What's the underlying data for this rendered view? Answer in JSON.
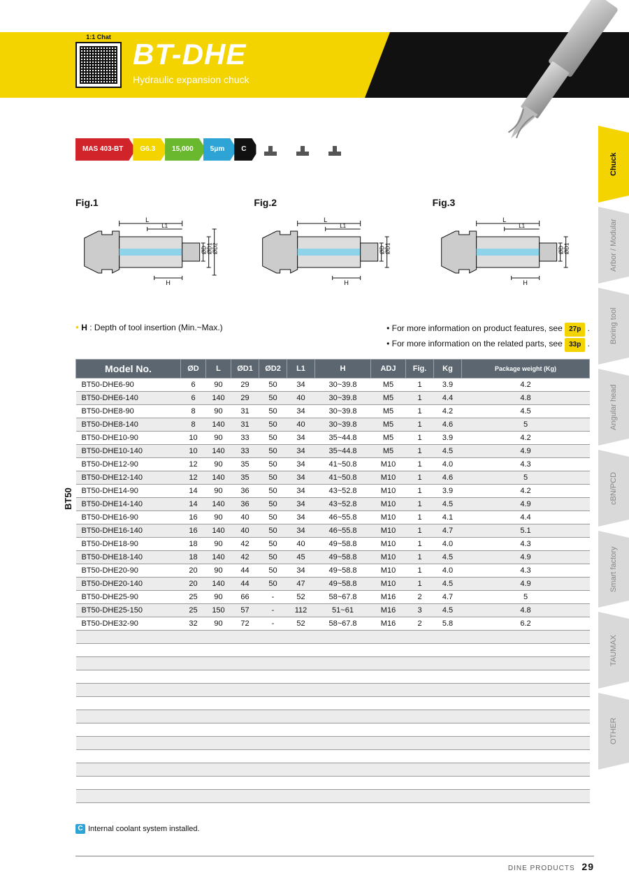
{
  "header": {
    "title": "BT-DHE",
    "subtitle": "Hydraulic expansion chuck",
    "qr_chat": "1:1 Chat"
  },
  "tags": [
    {
      "val": "MAS 403-BT",
      "label": "Shank",
      "color": "#d1232a"
    },
    {
      "val": "G6.3",
      "label": "G value",
      "color": "#f4d400"
    },
    {
      "val": "15,000",
      "label": "Max RPM",
      "color": "#6ab82d"
    },
    {
      "val": "5μm",
      "label": "Run-out",
      "color": "#2da3d6"
    },
    {
      "val": "C",
      "label": "Coolant System",
      "color": "#111"
    },
    {
      "val": "",
      "label": "Milling",
      "color": "#999",
      "icon": true
    },
    {
      "val": "",
      "label": "Reaming",
      "color": "#999",
      "icon": true
    },
    {
      "val": "",
      "label": "Chamfering",
      "color": "#999",
      "icon": true
    }
  ],
  "figs": [
    "Fig.1",
    "Fig.2",
    "Fig.3"
  ],
  "fig_labels": {
    "L": "L",
    "L1": "L1",
    "OD": "ØD",
    "OD1": "ØD1",
    "OD2": "ØD2",
    "H": "H"
  },
  "hnote": {
    "bold": "H",
    "rest": " : Depth of tool insertion (Min.~Max.)",
    "bullet": "•"
  },
  "rnotes": [
    {
      "txt": "For more information on product features, see ",
      "pill": "27p"
    },
    {
      "txt": "For more information on the related parts, see ",
      "pill": "33p"
    }
  ],
  "table": {
    "side_label": "BT50",
    "header_model": "Model No.",
    "headers": [
      "ØD",
      "L",
      "ØD1",
      "ØD2",
      "L1",
      "H",
      "ADJ",
      "Fig.",
      "Kg",
      "Package weight (Kg)"
    ],
    "colw": [
      "150px",
      "36px",
      "36px",
      "40px",
      "40px",
      "40px",
      "80px",
      "50px",
      "40px",
      "40px",
      "auto"
    ],
    "rows": [
      [
        "BT50-DHE6-90",
        "6",
        "90",
        "29",
        "50",
        "34",
        "30~39.8",
        "M5",
        "1",
        "3.9",
        "4.2"
      ],
      [
        "BT50-DHE6-140",
        "6",
        "140",
        "29",
        "50",
        "40",
        "30~39.8",
        "M5",
        "1",
        "4.4",
        "4.8"
      ],
      [
        "BT50-DHE8-90",
        "8",
        "90",
        "31",
        "50",
        "34",
        "30~39.8",
        "M5",
        "1",
        "4.2",
        "4.5"
      ],
      [
        "BT50-DHE8-140",
        "8",
        "140",
        "31",
        "50",
        "40",
        "30~39.8",
        "M5",
        "1",
        "4.6",
        "5"
      ],
      [
        "BT50-DHE10-90",
        "10",
        "90",
        "33",
        "50",
        "34",
        "35~44.8",
        "M5",
        "1",
        "3.9",
        "4.2"
      ],
      [
        "BT50-DHE10-140",
        "10",
        "140",
        "33",
        "50",
        "34",
        "35~44.8",
        "M5",
        "1",
        "4.5",
        "4.9"
      ],
      [
        "BT50-DHE12-90",
        "12",
        "90",
        "35",
        "50",
        "34",
        "41~50.8",
        "M10",
        "1",
        "4.0",
        "4.3"
      ],
      [
        "BT50-DHE12-140",
        "12",
        "140",
        "35",
        "50",
        "34",
        "41~50.8",
        "M10",
        "1",
        "4.6",
        "5"
      ],
      [
        "BT50-DHE14-90",
        "14",
        "90",
        "36",
        "50",
        "34",
        "43~52.8",
        "M10",
        "1",
        "3.9",
        "4.2"
      ],
      [
        "BT50-DHE14-140",
        "14",
        "140",
        "36",
        "50",
        "34",
        "43~52.8",
        "M10",
        "1",
        "4.5",
        "4.9"
      ],
      [
        "BT50-DHE16-90",
        "16",
        "90",
        "40",
        "50",
        "34",
        "46~55.8",
        "M10",
        "1",
        "4.1",
        "4.4"
      ],
      [
        "BT50-DHE16-140",
        "16",
        "140",
        "40",
        "50",
        "34",
        "46~55.8",
        "M10",
        "1",
        "4.7",
        "5.1"
      ],
      [
        "BT50-DHE18-90",
        "18",
        "90",
        "42",
        "50",
        "40",
        "49~58.8",
        "M10",
        "1",
        "4.0",
        "4.3"
      ],
      [
        "BT50-DHE18-140",
        "18",
        "140",
        "42",
        "50",
        "45",
        "49~58.8",
        "M10",
        "1",
        "4.5",
        "4.9"
      ],
      [
        "BT50-DHE20-90",
        "20",
        "90",
        "44",
        "50",
        "34",
        "49~58.8",
        "M10",
        "1",
        "4.0",
        "4.3"
      ],
      [
        "BT50-DHE20-140",
        "20",
        "140",
        "44",
        "50",
        "47",
        "49~58.8",
        "M10",
        "1",
        "4.5",
        "4.9"
      ],
      [
        "BT50-DHE25-90",
        "25",
        "90",
        "66",
        "-",
        "52",
        "58~67.8",
        "M16",
        "2",
        "4.7",
        "5"
      ],
      [
        "BT50-DHE25-150",
        "25",
        "150",
        "57",
        "-",
        "112",
        "51~61",
        "M16",
        "3",
        "4.5",
        "4.8"
      ],
      [
        "BT50-DHE32-90",
        "32",
        "90",
        "72",
        "-",
        "52",
        "58~67.8",
        "M16",
        "2",
        "5.8",
        "6.2"
      ]
    ],
    "empty_rows": 13
  },
  "coolnote": {
    "icon": "C",
    "txt": "Internal coolant system installed."
  },
  "footer": {
    "brand": "DINE PRODUCTS",
    "page": "29"
  },
  "sidetabs": [
    {
      "label": "Chuck",
      "active": true
    },
    {
      "label": "Arbor / Modular",
      "active": false
    },
    {
      "label": "Boring tool",
      "active": false
    },
    {
      "label": "Angular head",
      "active": false
    },
    {
      "label": "cBN/PCD",
      "active": false
    },
    {
      "label": "Smart factory",
      "active": false
    },
    {
      "label": "TAUMAX",
      "active": false
    },
    {
      "label": "OTHER",
      "active": false
    }
  ],
  "colors": {
    "yellow": "#f4d400",
    "dark": "#111",
    "header_bg": "#5b6671",
    "alt_row": "#ececec",
    "tab_inactive": "#d9d9d9",
    "tab_inactive_txt": "#888",
    "coolant_blue": "#2da3d6"
  }
}
